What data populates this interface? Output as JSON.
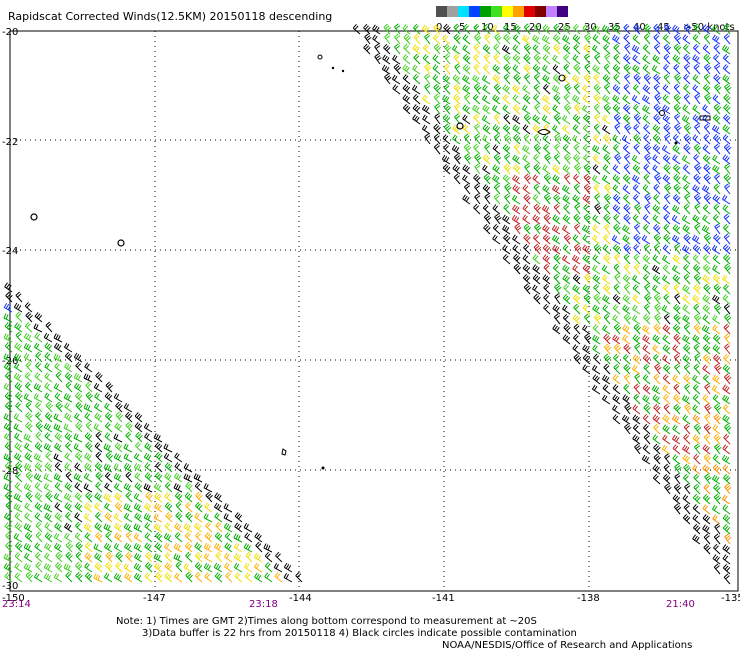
{
  "title": "Rapidscat Corrected Winds(12.5KM) 20150118 descending",
  "legend": {
    "labels": [
      "0",
      "5",
      "10",
      "15",
      "20",
      "25",
      "30",
      "35",
      "40",
      "45",
      ">50 knots"
    ],
    "colors": [
      "#505050",
      "#a0a0a0",
      "#00e0ff",
      "#0040ff",
      "#00a000",
      "#40e020",
      "#ffff00",
      "#ffa000",
      "#e00000",
      "#800000",
      "#c080ff",
      "#400080"
    ]
  },
  "axes": {
    "lat_labels": [
      "-20",
      "-22",
      "-24",
      "-26",
      "-28",
      "-30"
    ],
    "lon_labels": [
      "-150",
      "-147",
      "-144",
      "-141",
      "-138",
      "-135"
    ]
  },
  "times": [
    "23:14",
    "23:18",
    "21:40"
  ],
  "notes": {
    "line1": "Note: 1) Times are GMT 2)Times along bottom correspond to measurement at ~20S",
    "line2": "3)Data buffer is 22 hrs from 20150118 4) Black circles indicate possible contamination",
    "credit": "NOAA/NESDIS/Office of Research and Applications"
  }
}
